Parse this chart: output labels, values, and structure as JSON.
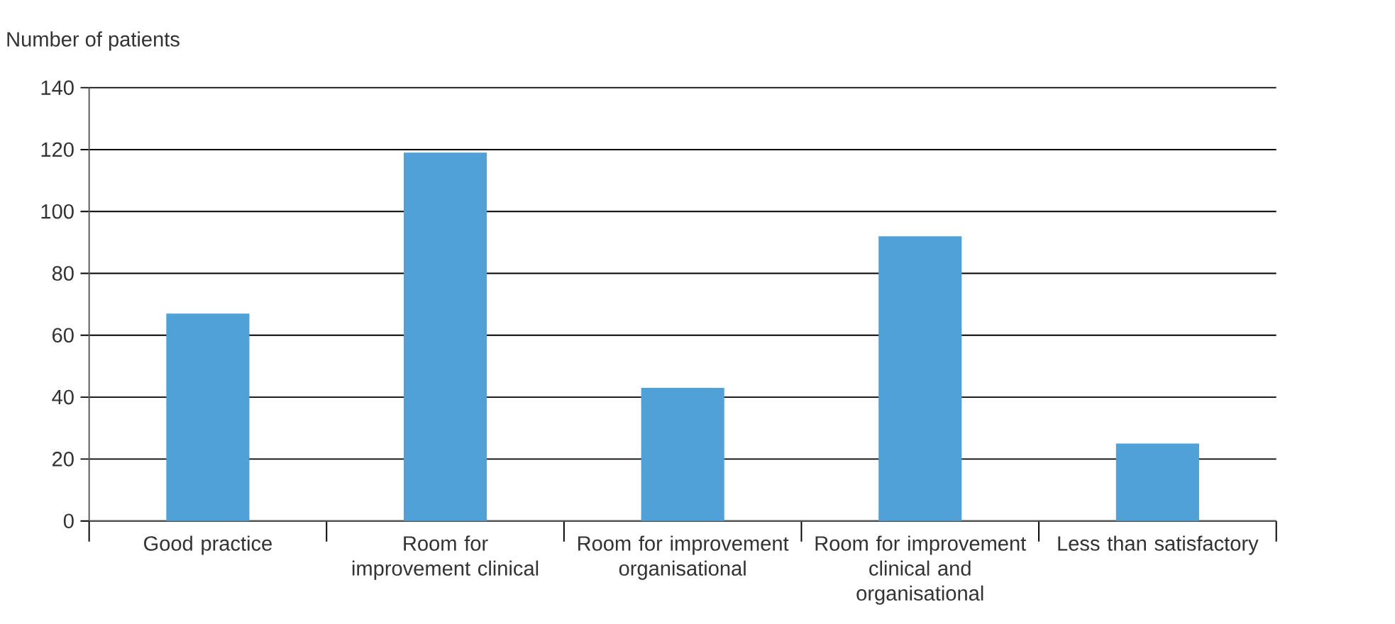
{
  "chart_data": {
    "type": "bar",
    "ylabel": "Number of patients",
    "categories": [
      "Good practice",
      "Room for improvement clinical",
      "Room for improvement organisational",
      "Room for improvement clinical and organisational",
      "Less than satisfactory"
    ],
    "values": [
      67,
      119,
      43,
      92,
      25
    ],
    "color": "#4fa1d7",
    "ylim": [
      0,
      140
    ],
    "yticks": [
      0,
      20,
      40,
      60,
      80,
      100,
      120,
      140
    ],
    "grid": "y"
  }
}
